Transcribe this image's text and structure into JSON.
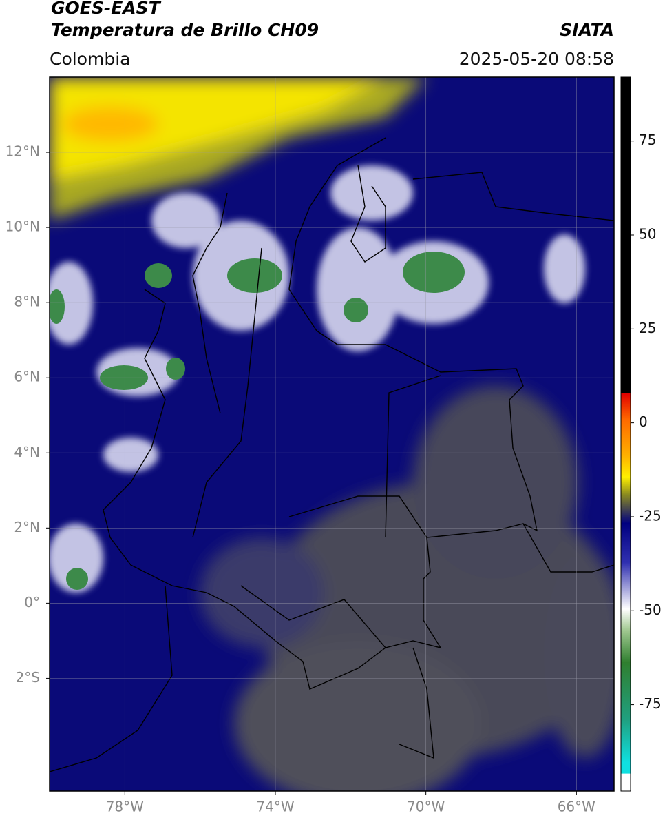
{
  "header": {
    "satellite": "GOES-EAST",
    "product": "Temperatura de Brillo CH09",
    "source": "SIATA",
    "region": "Colombia",
    "datetime": "2025-05-20 08:58"
  },
  "map": {
    "xlim": [
      -80,
      -65
    ],
    "ylim": [
      -5,
      14
    ],
    "xticks": [
      {
        "value": -78,
        "label": "78°W"
      },
      {
        "value": -74,
        "label": "74°W"
      },
      {
        "value": -70,
        "label": "70°W"
      },
      {
        "value": -66,
        "label": "66°W"
      }
    ],
    "yticks": [
      {
        "value": 12,
        "label": "12°N"
      },
      {
        "value": 10,
        "label": "10°N"
      },
      {
        "value": 8,
        "label": "8°N"
      },
      {
        "value": 6,
        "label": "6°N"
      },
      {
        "value": 4,
        "label": "4°N"
      },
      {
        "value": 2,
        "label": "2°N"
      },
      {
        "value": 0,
        "label": "0°"
      },
      {
        "value": -2,
        "label": "2°S"
      }
    ],
    "grid": true
  },
  "colorbar": {
    "lim": [
      -98,
      92
    ],
    "ticks": [
      75,
      50,
      25,
      0,
      -25,
      -50,
      -75
    ]
  }
}
